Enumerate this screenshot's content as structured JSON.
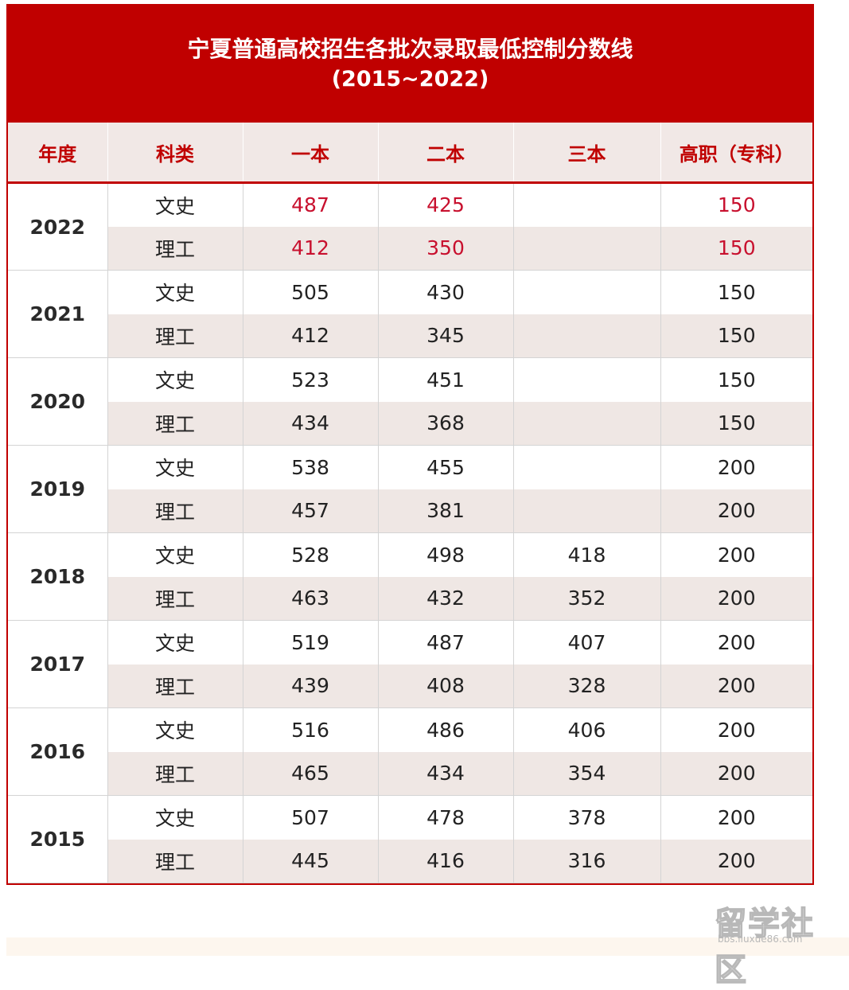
{
  "header": {
    "title": "宁夏普通高校招生各批次录取最低控制分数线",
    "subtitle": "(2015~2022)"
  },
  "table": {
    "columns": [
      "年度",
      "科类",
      "一本",
      "二本",
      "三本",
      "高职（专科）"
    ],
    "groups": [
      {
        "year": "2022",
        "rows": [
          {
            "category": "文史",
            "tier1": "487",
            "tier2": "425",
            "tier3": "",
            "vocational": "150"
          },
          {
            "category": "理工",
            "tier1": "412",
            "tier2": "350",
            "tier3": "",
            "vocational": "150"
          }
        ]
      },
      {
        "year": "2021",
        "rows": [
          {
            "category": "文史",
            "tier1": "505",
            "tier2": "430",
            "tier3": "",
            "vocational": "150"
          },
          {
            "category": "理工",
            "tier1": "412",
            "tier2": "345",
            "tier3": "",
            "vocational": "150"
          }
        ]
      },
      {
        "year": "2020",
        "rows": [
          {
            "category": "文史",
            "tier1": "523",
            "tier2": "451",
            "tier3": "",
            "vocational": "150"
          },
          {
            "category": "理工",
            "tier1": "434",
            "tier2": "368",
            "tier3": "",
            "vocational": "150"
          }
        ]
      },
      {
        "year": "2019",
        "rows": [
          {
            "category": "文史",
            "tier1": "538",
            "tier2": "455",
            "tier3": "",
            "vocational": "200"
          },
          {
            "category": "理工",
            "tier1": "457",
            "tier2": "381",
            "tier3": "",
            "vocational": "200"
          }
        ]
      },
      {
        "year": "2018",
        "rows": [
          {
            "category": "文史",
            "tier1": "528",
            "tier2": "498",
            "tier3": "418",
            "vocational": "200"
          },
          {
            "category": "理工",
            "tier1": "463",
            "tier2": "432",
            "tier3": "352",
            "vocational": "200"
          }
        ]
      },
      {
        "year": "2017",
        "rows": [
          {
            "category": "文史",
            "tier1": "519",
            "tier2": "487",
            "tier3": "407",
            "vocational": "200"
          },
          {
            "category": "理工",
            "tier1": "439",
            "tier2": "408",
            "tier3": "328",
            "vocational": "200"
          }
        ]
      },
      {
        "year": "2016",
        "rows": [
          {
            "category": "文史",
            "tier1": "516",
            "tier2": "486",
            "tier3": "406",
            "vocational": "200"
          },
          {
            "category": "理工",
            "tier1": "465",
            "tier2": "434",
            "tier3": "354",
            "vocational": "200"
          }
        ]
      },
      {
        "year": "2015",
        "rows": [
          {
            "category": "文史",
            "tier1": "507",
            "tier2": "478",
            "tier3": "378",
            "vocational": "200"
          },
          {
            "category": "理工",
            "tier1": "445",
            "tier2": "416",
            "tier3": "316",
            "vocational": "200"
          }
        ]
      }
    ],
    "highlight_color": "#c8102e"
  },
  "watermark": {
    "text": "留学社区",
    "url": "bbs.liuxue86.com"
  },
  "colors": {
    "brand_red": "#c00000",
    "header_row_bg": "#f1e8e6",
    "stripe_bg": "#efe7e4"
  }
}
